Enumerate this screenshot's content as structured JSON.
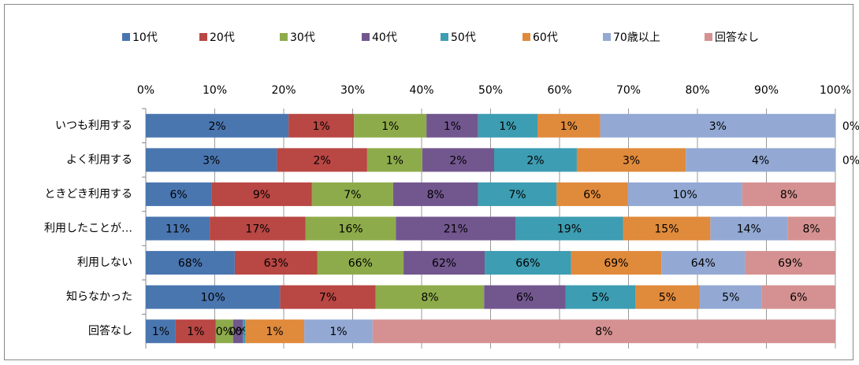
{
  "chart_data": {
    "type": "percent_stacked_barh",
    "categories": [
      "いつも利用する",
      "よく利用する",
      "ときどき利用する",
      "利用したことが…",
      "利用しない",
      "知らなかった",
      "回答なし"
    ],
    "series": [
      {
        "name": "10代",
        "color": "#4a76b0",
        "values": [
          2.07,
          3.14,
          5.89,
          11.2,
          68,
          10.4,
          0.52
        ],
        "value_labels": [
          "2%",
          "3%",
          "6%",
          "11%",
          "68%",
          "10%",
          "1%"
        ]
      },
      {
        "name": "20代",
        "color": "#b94744",
        "values": [
          0.95,
          2.16,
          9.05,
          16.8,
          63,
          7.4,
          0.7
        ],
        "value_labels": [
          "1%",
          "2%",
          "9%",
          "17%",
          "63%",
          "7%",
          "1%"
        ]
      },
      {
        "name": "30代",
        "color": "#8eab4b",
        "values": [
          1.05,
          1.32,
          7.3,
          15.8,
          66,
          8.4,
          0.3
        ],
        "value_labels": [
          "1%",
          "1%",
          "7%",
          "16%",
          "66%",
          "8%",
          "0%"
        ]
      },
      {
        "name": "40代",
        "color": "#72578f",
        "values": [
          0.75,
          1.72,
          7.63,
          21,
          62,
          6.3,
          0.17
        ],
        "value_labels": [
          "1%",
          "2%",
          "8%",
          "21%",
          "62%",
          "6%",
          "0%"
        ]
      },
      {
        "name": "50代",
        "color": "#3d9db2",
        "values": [
          0.86,
          1.98,
          7.07,
          18.8,
          66,
          5.4,
          0.04
        ],
        "value_labels": [
          "1%",
          "2%",
          "7%",
          "19%",
          "66%",
          "5%",
          "0%"
        ]
      },
      {
        "name": "60代",
        "color": "#e08a3c",
        "values": [
          0.91,
          2.61,
          6.39,
          15.3,
          69,
          5.0,
          1.03
        ],
        "value_labels": [
          "1%",
          "3%",
          "6%",
          "15%",
          "69%",
          "5%",
          "1%"
        ]
      },
      {
        "name": "70歳以上",
        "color": "#93a9d4",
        "values": [
          3.41,
          3.58,
          10.3,
          13.5,
          64,
          4.8,
          1.19
        ],
        "value_labels": [
          "3%",
          "4%",
          "10%",
          "14%",
          "64%",
          "5%",
          "1%"
        ]
      },
      {
        "name": "回答なし",
        "color": "#d59191",
        "values": [
          0,
          0,
          8.37,
          8.4,
          69,
          5.7,
          8.06
        ],
        "value_labels": [
          "0%",
          "0%",
          "8%",
          "8%",
          "69%",
          "6%",
          "8%"
        ]
      }
    ],
    "xlim": [
      0,
      100
    ],
    "xticks": [
      {
        "value": 0,
        "label": "0%"
      },
      {
        "value": 10,
        "label": "10%"
      },
      {
        "value": 20,
        "label": "20%"
      },
      {
        "value": 30,
        "label": "30%"
      },
      {
        "value": 40,
        "label": "40%"
      },
      {
        "value": 50,
        "label": "50%"
      },
      {
        "value": 60,
        "label": "60%"
      },
      {
        "value": 70,
        "label": "70%"
      },
      {
        "value": 80,
        "label": "80%"
      },
      {
        "value": 90,
        "label": "90%"
      },
      {
        "value": 100,
        "label": "100%"
      }
    ],
    "grid": true,
    "legend": "top"
  }
}
